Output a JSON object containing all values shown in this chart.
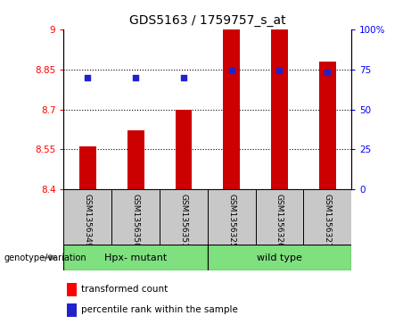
{
  "title": "GDS5163 / 1759757_s_at",
  "samples": [
    "GSM1356349",
    "GSM1356350",
    "GSM1356351",
    "GSM1356325",
    "GSM1356326",
    "GSM1356327"
  ],
  "transformed_counts": [
    8.56,
    8.62,
    8.7,
    9.0,
    9.0,
    8.88
  ],
  "percentile_ranks": [
    70,
    70,
    70,
    74,
    74,
    73
  ],
  "ylim_left": [
    8.4,
    9.0
  ],
  "ylim_right": [
    0,
    100
  ],
  "yticks_left": [
    8.4,
    8.55,
    8.7,
    8.85,
    9.0
  ],
  "ytick_labels_left": [
    "8.4",
    "8.55",
    "8.7",
    "8.85",
    "9"
  ],
  "yticks_right": [
    0,
    25,
    50,
    75,
    100
  ],
  "ytick_labels_right": [
    "0",
    "25",
    "50",
    "75",
    "100%"
  ],
  "bar_color": "#CC0000",
  "dot_color": "#2222CC",
  "bar_width": 0.35,
  "bar_bottom": 8.4,
  "grid_lines": [
    8.55,
    8.7,
    8.85
  ],
  "legend_items": [
    "transformed count",
    "percentile rank within the sample"
  ],
  "genotype_label": "genotype/variation",
  "group_defs": [
    [
      0,
      2,
      "Hpx- mutant",
      "#7EE07E"
    ],
    [
      3,
      5,
      "wild type",
      "#7EE07E"
    ]
  ],
  "background_color": "#ffffff",
  "plot_bg_color": "#ffffff",
  "label_area_color": "#c8c8c8"
}
